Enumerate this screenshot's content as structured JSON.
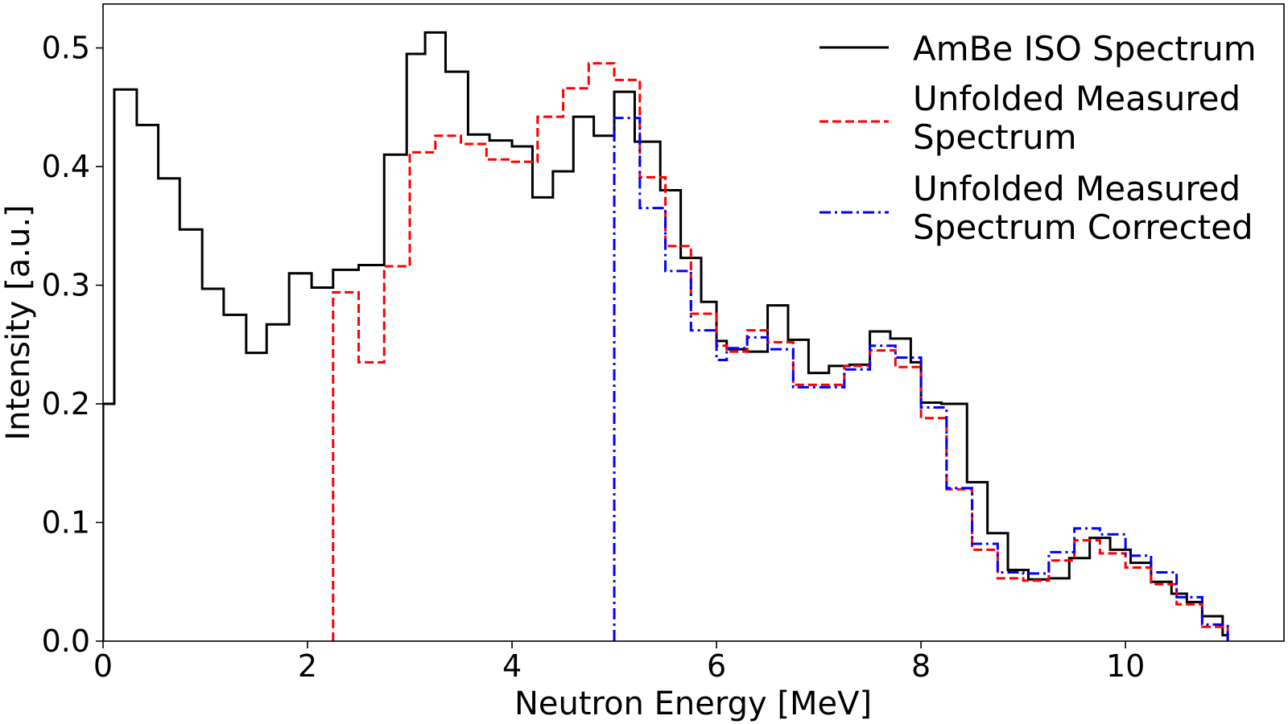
{
  "chart_data": {
    "type": "line",
    "subtype": "step-histogram",
    "title": "",
    "xlabel": "Neutron Energy [MeV]",
    "ylabel": "Intensity [a.u.]",
    "xlim": [
      0,
      11.55
    ],
    "ylim": [
      0,
      0.537
    ],
    "xticks": [
      0,
      2,
      4,
      6,
      8,
      10
    ],
    "xtick_labels": [
      "0",
      "2",
      "4",
      "6",
      "8",
      "10"
    ],
    "yticks": [
      0.0,
      0.1,
      0.2,
      0.3,
      0.4,
      0.5
    ],
    "ytick_labels": [
      "0.0",
      "0.1",
      "0.2",
      "0.3",
      "0.4",
      "0.5"
    ],
    "grid": false,
    "legend_position": "top-right",
    "series": [
      {
        "name": "AmBe ISO Spectrum",
        "color": "#000000",
        "style": "solid",
        "bin_edges": [
          0,
          0.11,
          0.33,
          0.54,
          0.75,
          0.97,
          1.18,
          1.4,
          1.6,
          1.82,
          2.04,
          2.25,
          2.5,
          2.75,
          2.97,
          3.15,
          3.35,
          3.57,
          3.78,
          4.0,
          4.2,
          4.4,
          4.6,
          4.8,
          5.0,
          5.2,
          5.45,
          5.65,
          5.85,
          6.0,
          6.1,
          6.3,
          6.5,
          6.7,
          6.9,
          7.1,
          7.3,
          7.5,
          7.7,
          7.9,
          8.0,
          8.2,
          8.45,
          8.65,
          8.85,
          9.05,
          9.25,
          9.45,
          9.65,
          9.85,
          10.05,
          10.25,
          10.45,
          10.6,
          10.75,
          10.95,
          11.0
        ],
        "values": [
          0.2,
          0.465,
          0.435,
          0.39,
          0.347,
          0.297,
          0.275,
          0.243,
          0.267,
          0.31,
          0.298,
          0.313,
          0.317,
          0.41,
          0.495,
          0.513,
          0.48,
          0.427,
          0.422,
          0.417,
          0.374,
          0.396,
          0.442,
          0.426,
          0.463,
          0.421,
          0.38,
          0.323,
          0.286,
          0.253,
          0.246,
          0.244,
          0.283,
          0.254,
          0.226,
          0.232,
          0.233,
          0.261,
          0.255,
          0.235,
          0.201,
          0.2,
          0.134,
          0.091,
          0.06,
          0.052,
          0.053,
          0.07,
          0.087,
          0.077,
          0.066,
          0.05,
          0.04,
          0.033,
          0.021,
          0.005
        ]
      },
      {
        "name": "Unfolded Measured Spectrum",
        "color": "#ff0000",
        "style": "dashed",
        "bin_edges": [
          2.25,
          2.5,
          2.75,
          3.0,
          3.25,
          3.5,
          3.75,
          4.0,
          4.25,
          4.5,
          4.75,
          5.0,
          5.25,
          5.5,
          5.75,
          6.0,
          6.1,
          6.3,
          6.5,
          6.75,
          7.0,
          7.25,
          7.5,
          7.75,
          8.0,
          8.25,
          8.5,
          8.75,
          9.0,
          9.25,
          9.5,
          9.75,
          10.0,
          10.25,
          10.5,
          10.75,
          11.0
        ],
        "values": [
          0.294,
          0.235,
          0.316,
          0.412,
          0.426,
          0.419,
          0.406,
          0.404,
          0.442,
          0.466,
          0.487,
          0.473,
          0.391,
          0.333,
          0.276,
          0.249,
          0.244,
          0.262,
          0.252,
          0.216,
          0.216,
          0.232,
          0.245,
          0.231,
          0.188,
          0.128,
          0.077,
          0.053,
          0.051,
          0.068,
          0.085,
          0.074,
          0.062,
          0.048,
          0.031,
          0.012
        ]
      },
      {
        "name": "Unfolded Measured Spectrum Corrected",
        "color": "#0000ff",
        "style": "dashdot",
        "bin_edges": [
          5.0,
          5.25,
          5.5,
          5.75,
          6.0,
          6.1,
          6.3,
          6.5,
          6.75,
          7.0,
          7.25,
          7.5,
          7.75,
          8.0,
          8.25,
          8.5,
          8.75,
          9.0,
          9.25,
          9.5,
          9.75,
          10.0,
          10.25,
          10.5,
          10.75,
          11.0
        ],
        "values": [
          0.441,
          0.365,
          0.312,
          0.262,
          0.237,
          0.247,
          0.256,
          0.246,
          0.214,
          0.214,
          0.229,
          0.249,
          0.239,
          0.197,
          0.129,
          0.082,
          0.058,
          0.057,
          0.075,
          0.095,
          0.09,
          0.072,
          0.058,
          0.037,
          0.014
        ]
      }
    ]
  }
}
